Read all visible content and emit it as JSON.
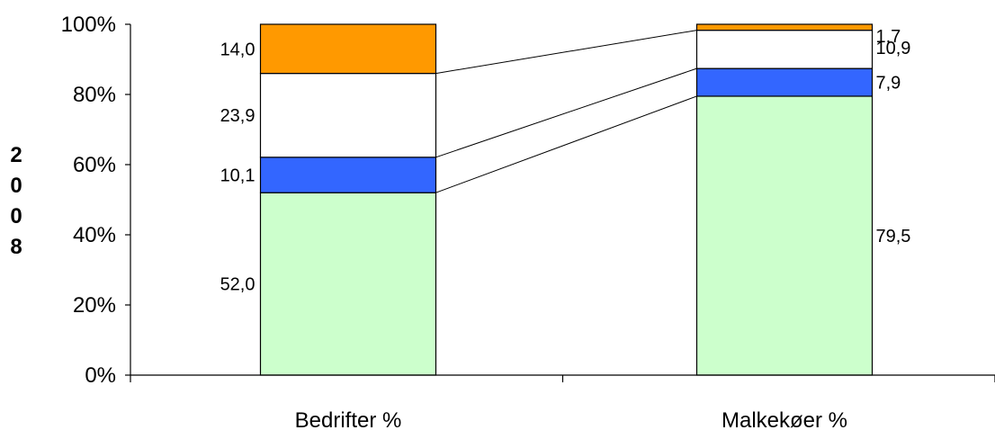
{
  "chart_data": {
    "type": "bar",
    "stacked": "percent",
    "ylabel": "2008",
    "xlabel": "",
    "ylim": [
      0,
      100
    ],
    "yticks": [
      "0%",
      "20%",
      "40%",
      "60%",
      "80%",
      "100%"
    ],
    "categories": [
      "Bedrifter %",
      "Malkekøer %"
    ],
    "series": [
      {
        "values": [
          52.0,
          79.5
        ],
        "labels": [
          "52,0",
          "79,5"
        ],
        "color": "#ccffcc"
      },
      {
        "values": [
          10.1,
          7.9
        ],
        "labels": [
          "10,1",
          "7,9"
        ],
        "color": "#3366ff"
      },
      {
        "values": [
          23.9,
          10.9
        ],
        "labels": [
          "23,9",
          "10,9"
        ],
        "color": "#ffffff"
      },
      {
        "values": [
          14.0,
          1.7
        ],
        "labels": [
          "14,0",
          "1,7"
        ],
        "color": "#ff9900"
      }
    ],
    "grid": false,
    "legend": "none",
    "series_connector_lines": true
  }
}
